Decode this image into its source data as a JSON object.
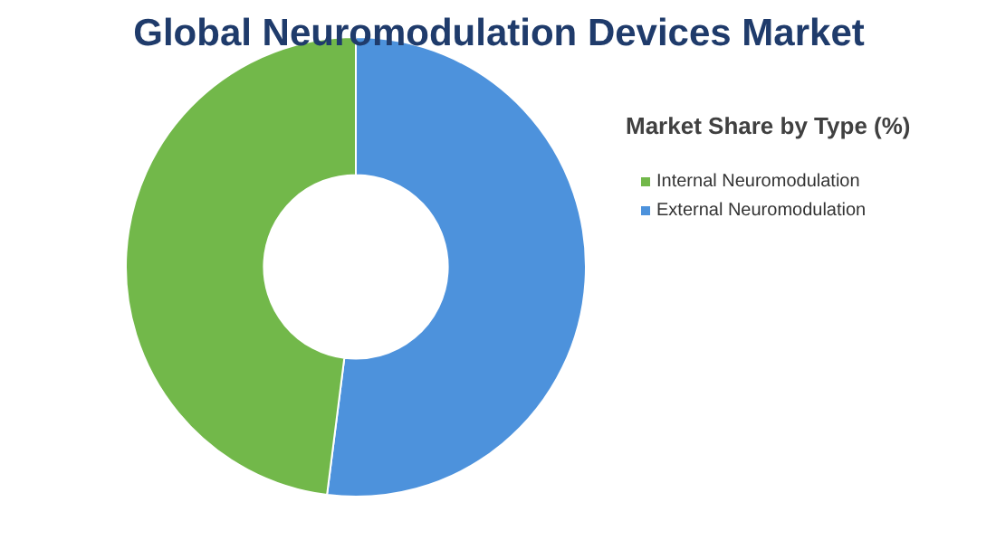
{
  "chart_data": {
    "type": "donut",
    "title": "Global Neuromodulation Devices Market",
    "legend_title": "Market Share by Type (%)",
    "categories": [
      "Internal Neuromodulation",
      "External Neuromodulation"
    ],
    "values": [
      48,
      52
    ],
    "colors": [
      "#72b84a",
      "#4d92dc"
    ],
    "legend": "right"
  }
}
